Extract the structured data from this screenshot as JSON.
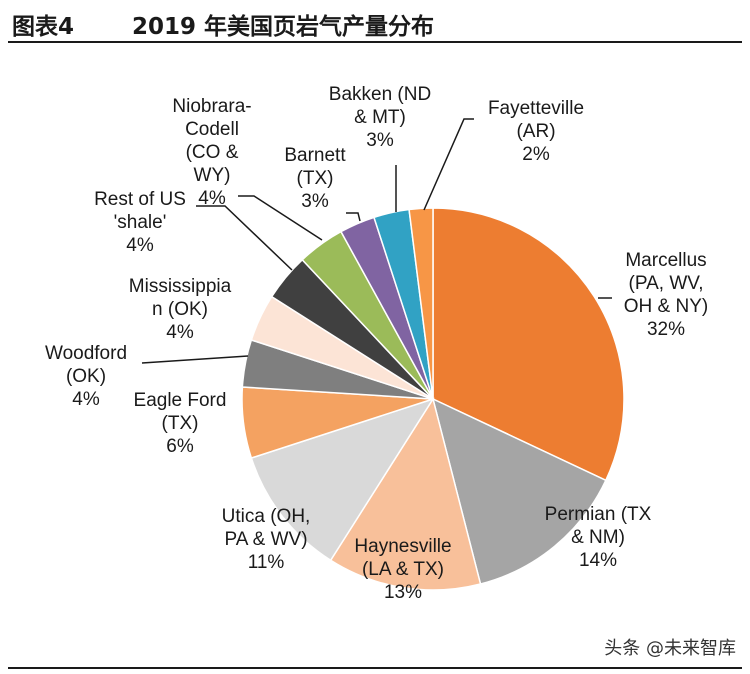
{
  "header": {
    "figure_label": "图表4",
    "title": "2019 年美国页岩气产量分布"
  },
  "watermark": "头条 @未来智库",
  "chart_data": {
    "type": "pie",
    "title": "2019 年美国页岩气产量分布",
    "slices": [
      {
        "label_lines": [
          "Marcellus",
          "(PA, WV,",
          "OH & NY)",
          "32%"
        ],
        "value": 32,
        "color": "#ED7D31"
      },
      {
        "label_lines": [
          "Permian (TX",
          "& NM)",
          "14%"
        ],
        "value": 14,
        "color": "#A5A5A5"
      },
      {
        "label_lines": [
          "Haynesville",
          "(LA & TX)",
          "13%"
        ],
        "value": 13,
        "color": "#F8C09A"
      },
      {
        "label_lines": [
          "Utica (OH,",
          "PA & WV)",
          "11%"
        ],
        "value": 11,
        "color": "#D9D9D9"
      },
      {
        "label_lines": [
          "Eagle Ford",
          "(TX)",
          "6%"
        ],
        "value": 6,
        "color": "#F4A261"
      },
      {
        "label_lines": [
          "Woodford",
          "(OK)",
          "4%"
        ],
        "value": 4,
        "color": "#7F7F7F"
      },
      {
        "label_lines": [
          "Mississippia",
          "n (OK)",
          "4%"
        ],
        "value": 4,
        "color": "#FCE4D6"
      },
      {
        "label_lines": [
          "Rest of US",
          "'shale'",
          "4%"
        ],
        "value": 4,
        "color": "#404040"
      },
      {
        "label_lines": [
          "Niobrara-",
          "Codell",
          "(CO &",
          "WY)",
          "4%"
        ],
        "value": 4,
        "color": "#9BBB59"
      },
      {
        "label_lines": [
          "Barnett",
          "(TX)",
          "3%"
        ],
        "value": 3,
        "color": "#8064A2"
      },
      {
        "label_lines": [
          "Bakken (ND",
          "& MT)",
          "3%"
        ],
        "value": 3,
        "color": "#31A2C4"
      },
      {
        "label_lines": [
          "Fayetteville",
          "(AR)",
          "2%"
        ],
        "value": 2,
        "color": "#F79646"
      }
    ]
  }
}
